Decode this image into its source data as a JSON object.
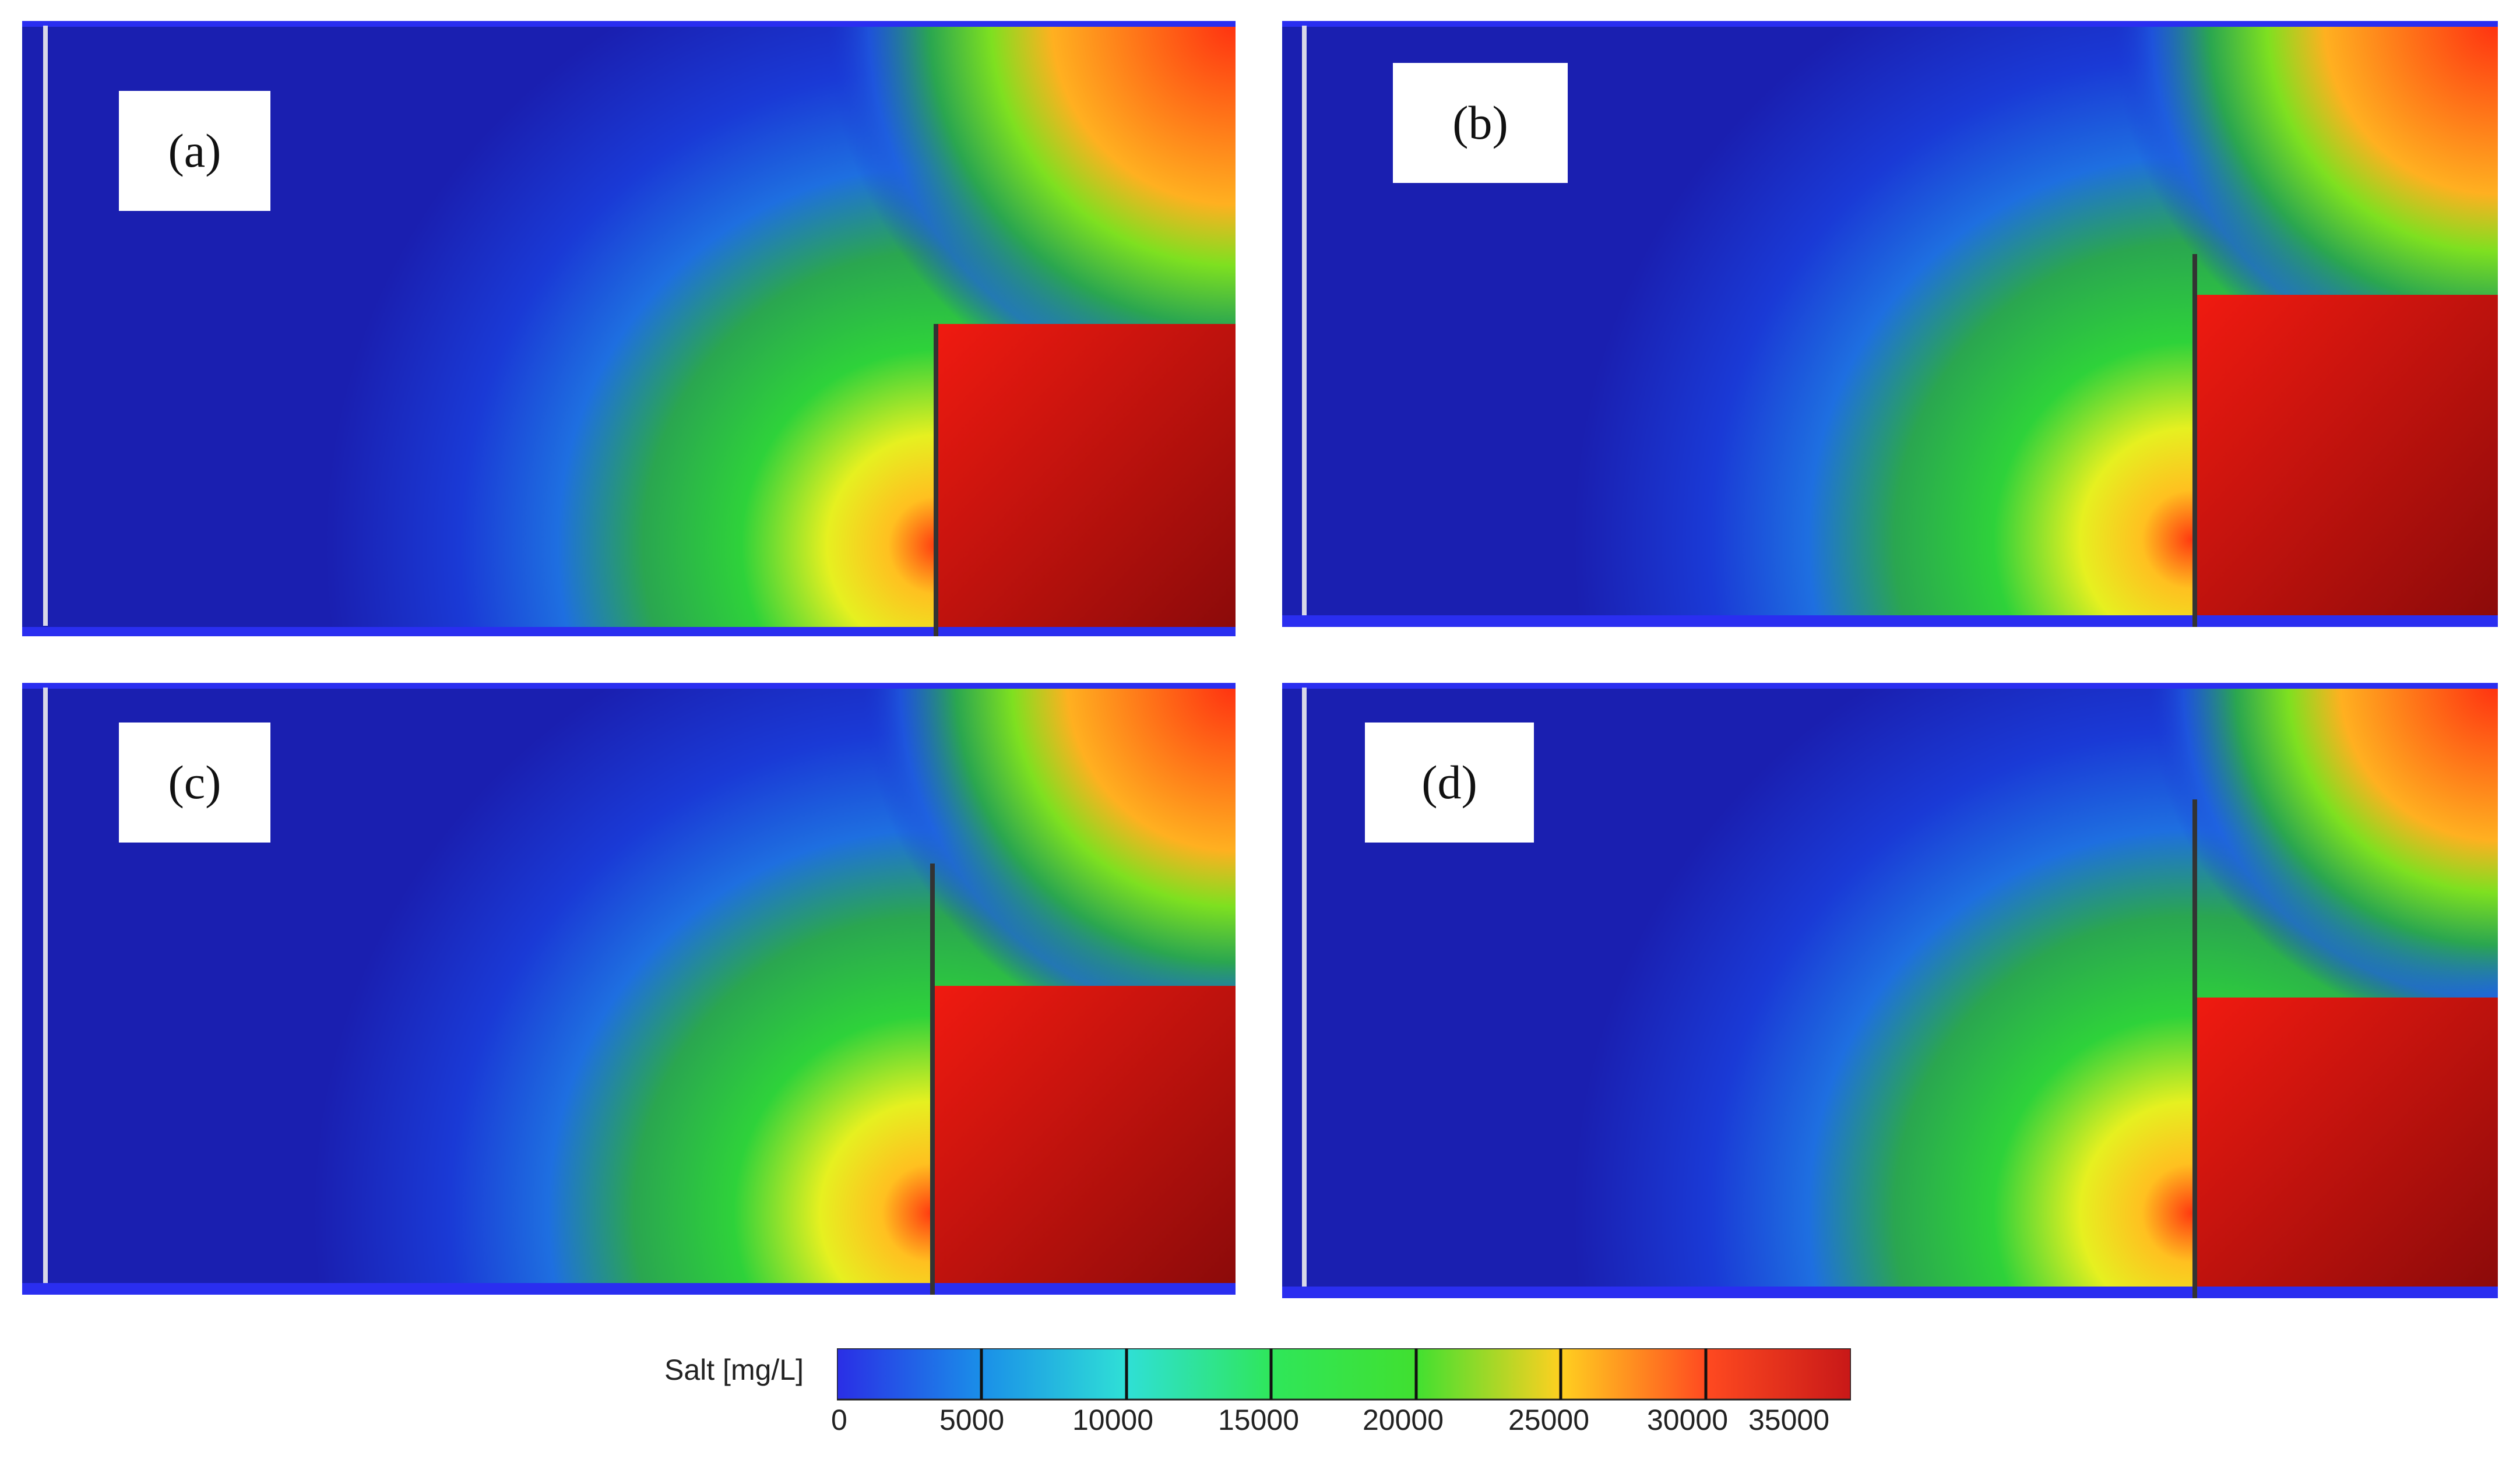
{
  "panels": [
    {
      "id": "a",
      "label": "(a)",
      "barrier_top": 0.5
    },
    {
      "id": "b",
      "label": "(b)",
      "barrier_top": 0.6
    },
    {
      "id": "c",
      "label": "(c)",
      "barrier_top": 0.7
    },
    {
      "id": "d",
      "label": "(d)",
      "barrier_top": 0.8
    }
  ],
  "legend": {
    "title": "Salt [mg/L]",
    "ticks": [
      "0",
      "5000",
      "10000",
      "15000",
      "20000",
      "25000",
      "30000",
      "35000"
    ],
    "colors": [
      "#2a2ee6",
      "#1a8fe8",
      "#2fe0d6",
      "#2fe65a",
      "#c8f020",
      "#ffc020",
      "#ff5a20",
      "#c81818"
    ]
  },
  "colors": {
    "background": "#1a1fd6",
    "fresh": "#1a1fd6",
    "saline": "#c01010"
  }
}
